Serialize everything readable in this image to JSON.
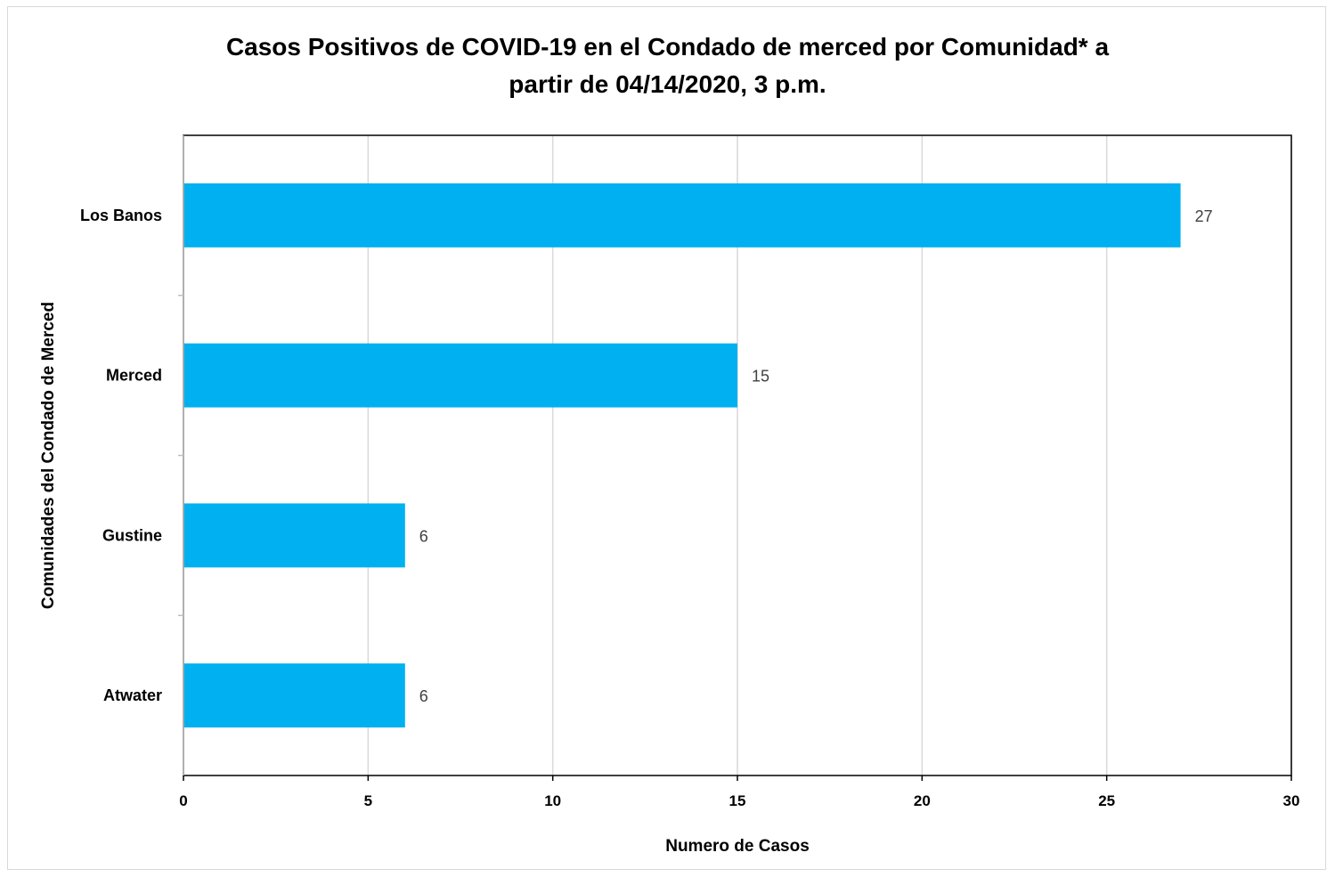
{
  "chart_data": {
    "type": "bar",
    "orientation": "horizontal",
    "title": "Casos Positivos de COVID-19 en el Condado de merced por Comunidad* a partir de 04/14/2020, 3 p.m.",
    "title_lines": [
      "Casos Positivos de COVID-19 en el Condado de merced por Comunidad* a",
      "partir de 04/14/2020, 3 p.m."
    ],
    "categories": [
      "Los Banos",
      "Merced",
      "Gustine",
      "Atwater"
    ],
    "values": [
      27,
      15,
      6,
      6
    ],
    "data_labels": [
      "27",
      "15",
      "6",
      "6"
    ],
    "xlabel": "Numero de Casos",
    "ylabel": "Comunidades del Condado de Merced",
    "xlim": [
      0,
      30
    ],
    "xticks": [
      0,
      5,
      10,
      15,
      20,
      25,
      30
    ],
    "xtick_labels": [
      "0",
      "5",
      "10",
      "15",
      "20",
      "25",
      "30"
    ],
    "grid": "vertical",
    "legend": "none",
    "bar_color": "#00b0f0",
    "grid_color": "#d9d9d9"
  }
}
